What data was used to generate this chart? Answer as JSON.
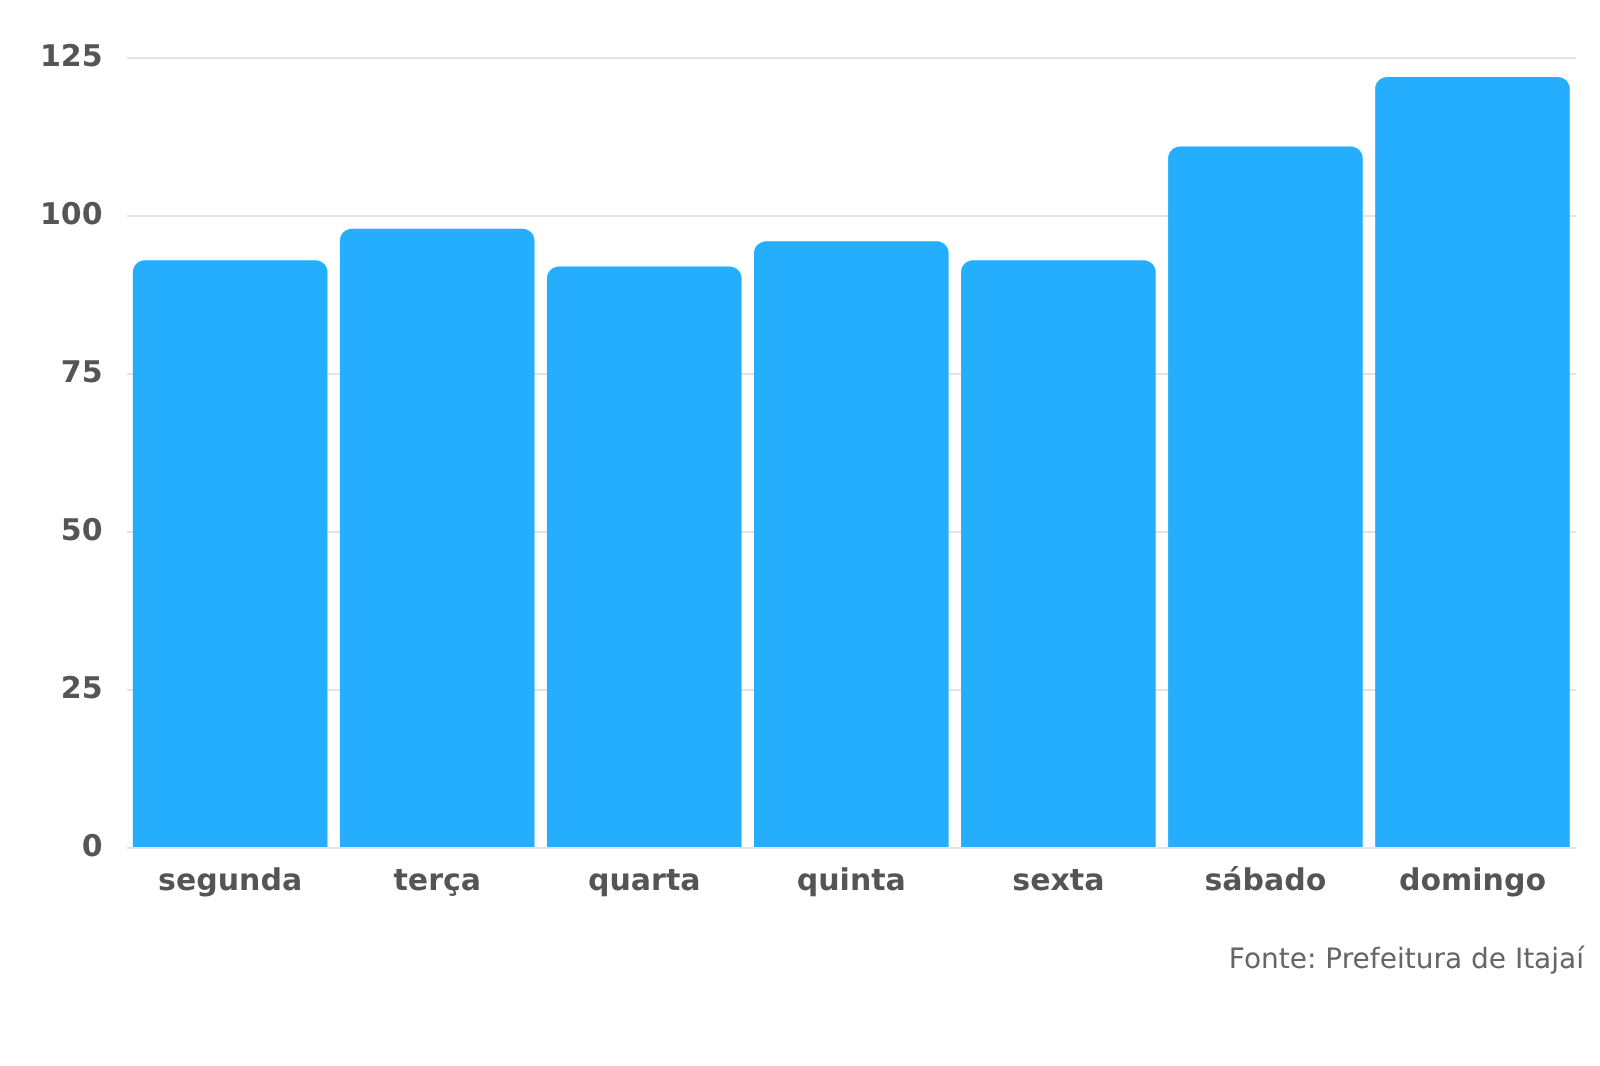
{
  "chart_data": {
    "type": "bar",
    "categories": [
      "segunda",
      "terça",
      "quarta",
      "quinta",
      "sexta",
      "sábado",
      "domingo"
    ],
    "values": [
      93,
      98,
      92,
      96,
      93,
      111,
      122
    ],
    "color": "#24aefd",
    "ylim": [
      0,
      125
    ],
    "yticks": [
      0,
      25,
      50,
      75,
      100,
      125
    ],
    "grid": "y",
    "legend": false,
    "annotations": [
      "Fonte: Prefeitura de Itajaí"
    ]
  }
}
